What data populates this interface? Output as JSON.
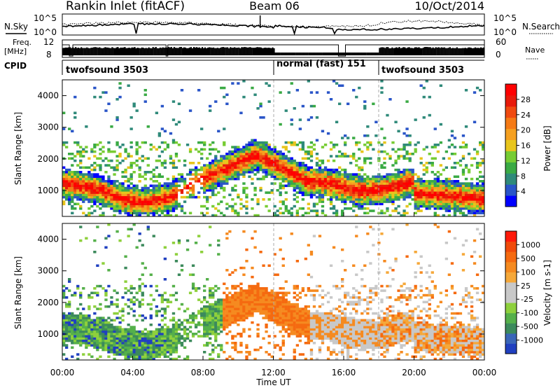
{
  "header": {
    "station": "Rankin Inlet (fitACF)",
    "beam": "Beam 06",
    "date": "10/Oct/2014"
  },
  "noise_panel": {
    "left_label": "N.Sky",
    "right_label": "N.Search",
    "left_ticks": [
      "10^5",
      "10^0"
    ],
    "right_ticks": [
      "10^5",
      "10^0"
    ],
    "right_legend_style": "dotted"
  },
  "freq_panel": {
    "left_label_1": "Freq.",
    "left_label_2": "[MHz]",
    "right_label": "Nave",
    "left_ticks": [
      "12",
      "8"
    ],
    "right_ticks": [
      "60",
      "0"
    ],
    "right_legend_style": "dotted"
  },
  "cpid_panel": {
    "label": "CPID",
    "segments": [
      {
        "start_hour": 0.0,
        "end_hour": 12.0,
        "text": "twofsound 3503"
      },
      {
        "start_hour": 12.0,
        "end_hour": 18.0,
        "text": "normal (fast) 151"
      },
      {
        "start_hour": 18.0,
        "end_hour": 24.0,
        "text": "twofsound 3503"
      }
    ]
  },
  "chart_data": [
    {
      "type": "heatmap",
      "name": "power",
      "ylabel": "Slant Range [km]",
      "yticks": [
        "4000",
        "3000",
        "2000",
        "1000"
      ],
      "ylim": [
        180,
        4500
      ],
      "xlim_hours": [
        0,
        24
      ],
      "colorbar": {
        "label": "Power [dB]",
        "tick_labels": [
          "28",
          "24",
          "20",
          "16",
          "12",
          "8",
          "4"
        ],
        "range": [
          0,
          30
        ],
        "colors": [
          "#0000ff",
          "#2a55c8",
          "#2f8a7a",
          "#3aaa44",
          "#77cc33",
          "#e8c51c",
          "#f5a020",
          "#f57a15",
          "#f04a10",
          "#e81a0a",
          "#ff0000"
        ]
      }
    },
    {
      "type": "heatmap",
      "name": "velocity",
      "ylabel": "Slant Range [km]",
      "yticks": [
        "4000",
        "3000",
        "2000",
        "1000"
      ],
      "ylim": [
        180,
        4500
      ],
      "xlim_hours": [
        0,
        24
      ],
      "colorbar": {
        "label": "Velocity [m s-1]",
        "tick_labels": [
          "1000",
          "500",
          "100",
          "25",
          "-25",
          "-100",
          "-500",
          "-1000"
        ],
        "colors": [
          "#2040c0",
          "#3a66b8",
          "#3c8a5c",
          "#55b04a",
          "#8ed03c",
          "#c8c8c8",
          "#c8c8c8",
          "#f5a83a",
          "#f58a20",
          "#f56a10",
          "#f04a0a",
          "#ff1a0a"
        ]
      }
    }
  ],
  "time_axis": {
    "xlabel": "Time UT",
    "tick_labels": [
      "00:00",
      "04:00",
      "08:00",
      "12:00",
      "16:00",
      "20:00",
      "00:00"
    ]
  }
}
